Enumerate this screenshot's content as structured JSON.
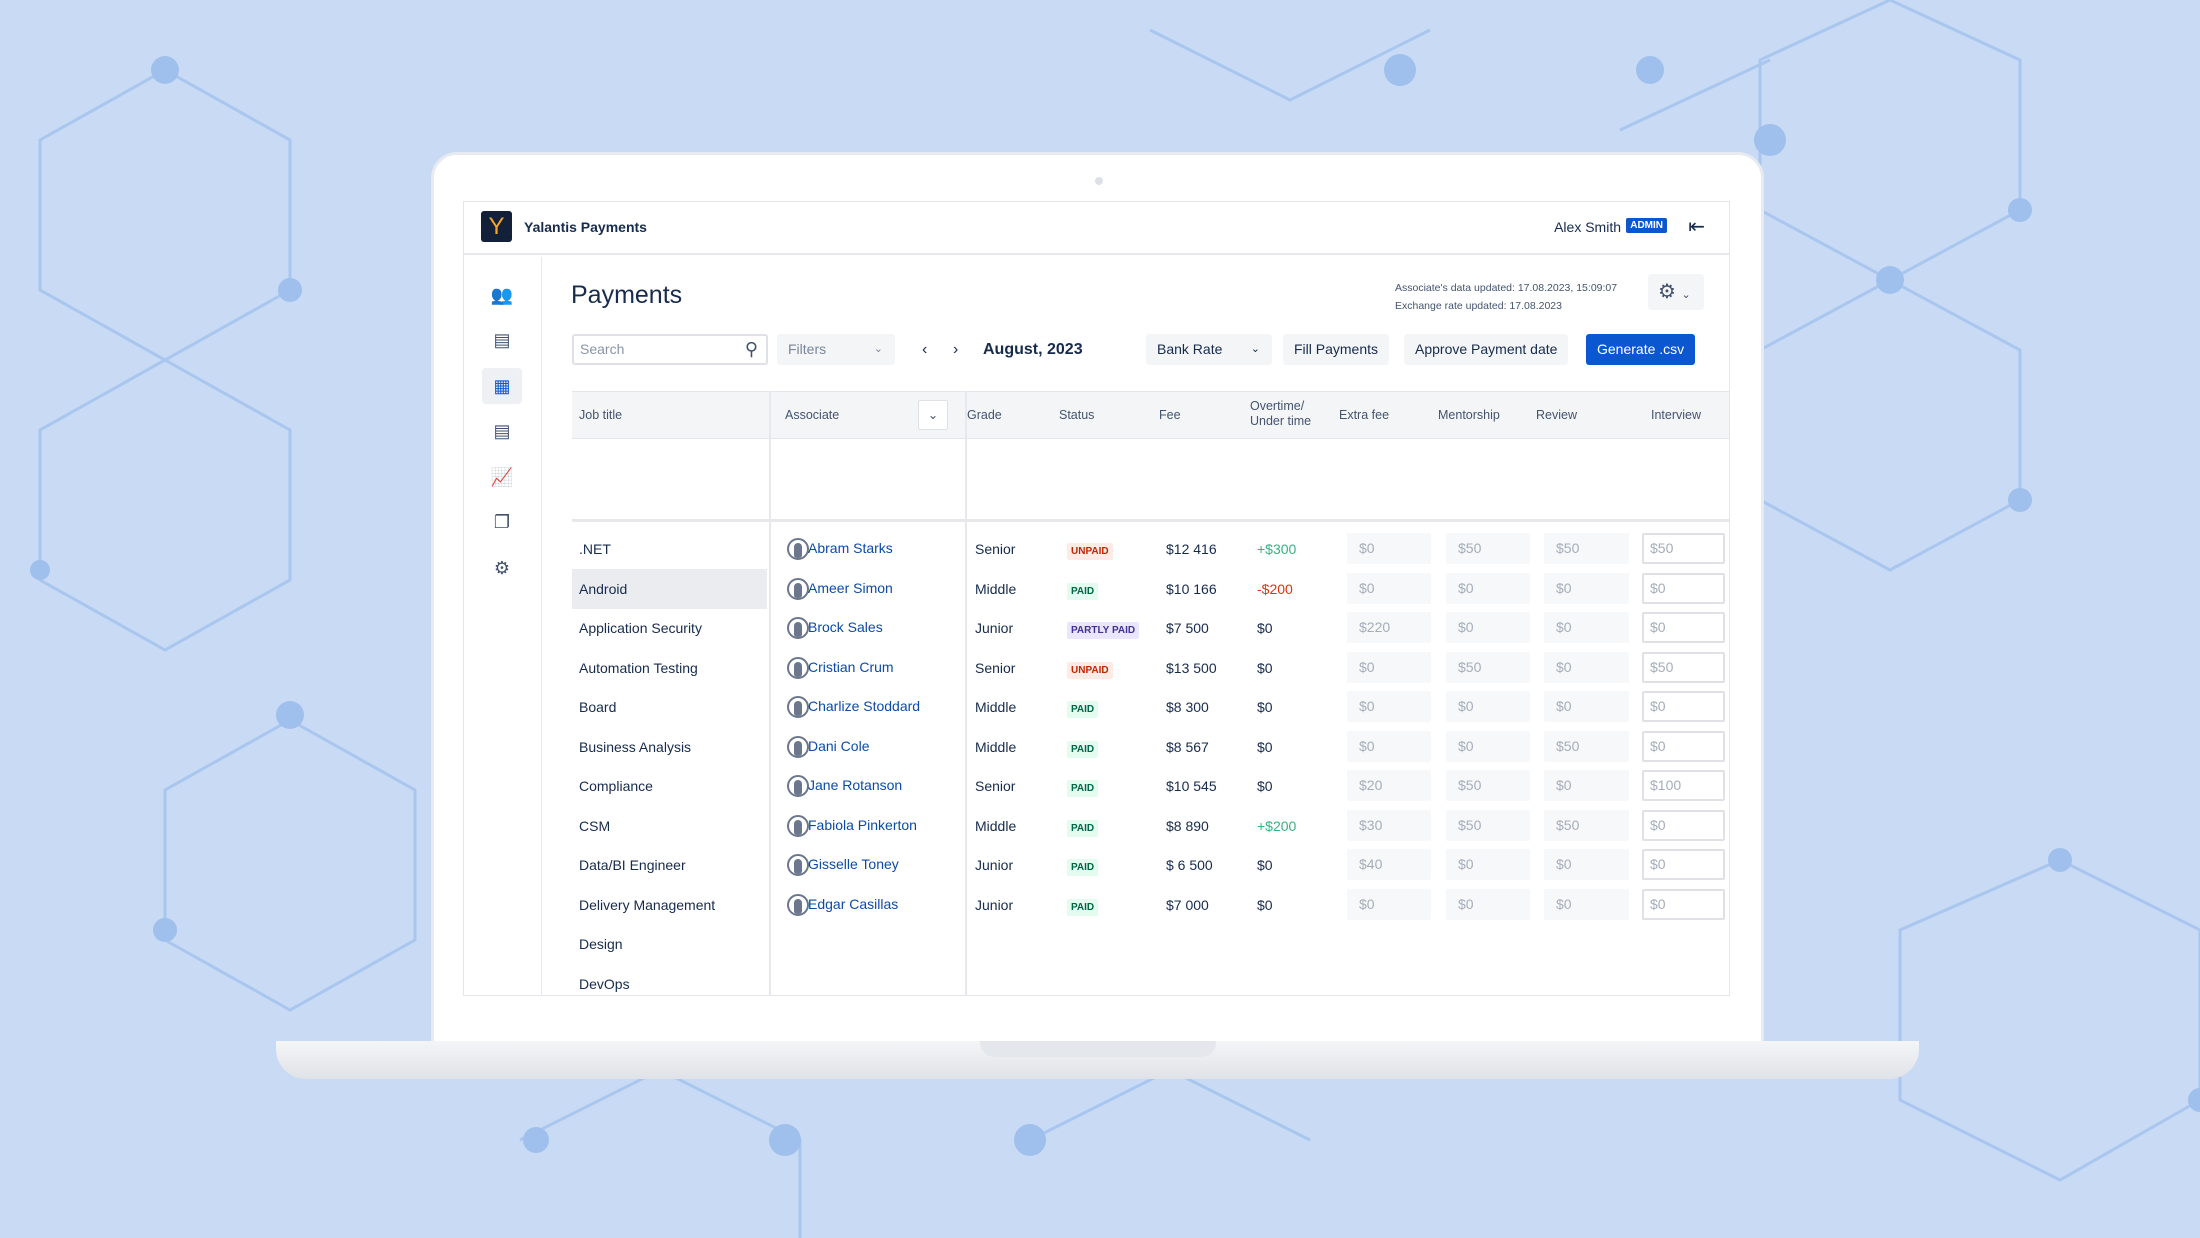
{
  "app": {
    "logo_letter": "Y",
    "name": "Yalantis Payments",
    "user": "Alex Smith",
    "role_badge": "ADMIN"
  },
  "sidebar": {
    "items": [
      {
        "icon": "team-icon"
      },
      {
        "icon": "documents-icon"
      },
      {
        "icon": "payments-icon",
        "active": true
      },
      {
        "icon": "reports-icon"
      },
      {
        "icon": "chart-icon"
      },
      {
        "icon": "copy-icon"
      },
      {
        "icon": "settings-icon"
      }
    ]
  },
  "page": {
    "title": "Payments",
    "associates_updated": "Associate's data updated: 17.08.2023, 15:09:07",
    "exchange_updated": "Exchange rate updated: 17.08.2023"
  },
  "toolbar": {
    "search_placeholder": "Search",
    "filters": "Filters",
    "month": "August, 2023",
    "bank_rate": "Bank Rate",
    "fill": "Fill Payments",
    "approve": "Approve Payment date",
    "generate": "Generate .csv"
  },
  "columns": {
    "job": "Job title",
    "associate": "Associate",
    "grade": "Grade",
    "status": "Status",
    "fee": "Fee",
    "overtime": "Overtime/\nUnder time",
    "extra": "Extra fee",
    "mentorship": "Mentorship",
    "review": "Review",
    "interview": "Interview"
  },
  "job_titles": [
    ".NET",
    "Android",
    "Application Security",
    "Automation Testing",
    "Board",
    "Business Analysis",
    "Compliance",
    "CSM",
    "Data/BI Engineer",
    "Delivery Management",
    "Design",
    "DevOps"
  ],
  "selected_job": "Android",
  "colors": {
    "accent": "#0b57d0",
    "paid_bg": "#e3fcef",
    "paid_fg": "#006644",
    "unpaid_bg": "#ffebe6",
    "unpaid_fg": "#bf2600",
    "partly_bg": "#eae6ff",
    "partly_fg": "#403294",
    "positive": "#36b37e",
    "negative": "#de350b",
    "link": "#0b4ba8"
  },
  "rows": [
    {
      "name": "Abram Starks",
      "grade": "Senior",
      "status": "UNPAID",
      "fee": "$12 416",
      "overtime": "+$300",
      "extra": "$0",
      "mentorship": "$50",
      "review": "$50",
      "interview": "$50"
    },
    {
      "name": "Ameer Simon",
      "grade": "Middle",
      "status": "PAID",
      "fee": "$10 166",
      "overtime": "-$200",
      "extra": "$0",
      "mentorship": "$0",
      "review": "$0",
      "interview": "$0"
    },
    {
      "name": "Brock Sales",
      "grade": "Junior",
      "status": "PARTLY PAID",
      "fee": "$7 500",
      "overtime": "$0",
      "extra": "$220",
      "mentorship": "$0",
      "review": "$0",
      "interview": "$0"
    },
    {
      "name": "Cristian Crum",
      "grade": "Senior",
      "status": "UNPAID",
      "fee": "$13 500",
      "overtime": "$0",
      "extra": "$0",
      "mentorship": "$50",
      "review": "$0",
      "interview": "$50"
    },
    {
      "name": "Charlize Stoddard",
      "grade": "Middle",
      "status": "PAID",
      "fee": "$8 300",
      "overtime": "$0",
      "extra": "$0",
      "mentorship": "$0",
      "review": "$0",
      "interview": "$0"
    },
    {
      "name": "Dani Cole",
      "grade": "Middle",
      "status": "PAID",
      "fee": "$8 567",
      "overtime": "$0",
      "extra": "$0",
      "mentorship": "$0",
      "review": "$50",
      "interview": "$0"
    },
    {
      "name": "Jane Rotanson",
      "grade": "Senior",
      "status": "PAID",
      "fee": "$10 545",
      "overtime": "$0",
      "extra": "$20",
      "mentorship": "$50",
      "review": "$0",
      "interview": "$100"
    },
    {
      "name": "Fabiola Pinkerton",
      "grade": "Middle",
      "status": "PAID",
      "fee": "$8 890",
      "overtime": "+$200",
      "extra": "$30",
      "mentorship": "$50",
      "review": "$50",
      "interview": "$0"
    },
    {
      "name": "Gisselle Toney",
      "grade": "Junior",
      "status": "PAID",
      "fee": "$ 6 500",
      "overtime": "$0",
      "extra": "$40",
      "mentorship": "$0",
      "review": "$0",
      "interview": "$0"
    },
    {
      "name": "Edgar Casillas",
      "grade": "Junior",
      "status": "PAID",
      "fee": "$7 000",
      "overtime": "$0",
      "extra": "$0",
      "mentorship": "$0",
      "review": "$0",
      "interview": "$0"
    }
  ]
}
